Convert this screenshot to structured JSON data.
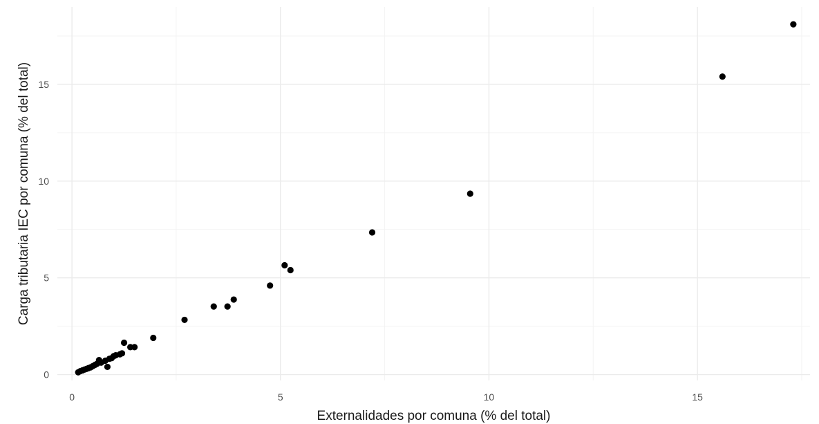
{
  "chart_data": {
    "type": "scatter",
    "title": "",
    "xlabel": "Externalidades por comuna (% del total)",
    "ylabel": "Carga tributaria IEC por comuna (% del total)",
    "xlim": [
      -0.35,
      17.7
    ],
    "ylim": [
      -0.3,
      19.0
    ],
    "xticks": [
      0,
      5,
      10,
      15
    ],
    "xtick_labels": [
      "0",
      "5",
      "10",
      "15"
    ],
    "yticks": [
      0,
      5,
      10,
      15
    ],
    "ytick_labels": [
      "0",
      "5",
      "10",
      "15"
    ],
    "grid": true,
    "point_color": "#000000",
    "points": [
      {
        "x": 0.15,
        "y": 0.12
      },
      {
        "x": 0.2,
        "y": 0.18
      },
      {
        "x": 0.25,
        "y": 0.22
      },
      {
        "x": 0.3,
        "y": 0.26
      },
      {
        "x": 0.35,
        "y": 0.3
      },
      {
        "x": 0.4,
        "y": 0.34
      },
      {
        "x": 0.45,
        "y": 0.38
      },
      {
        "x": 0.5,
        "y": 0.44
      },
      {
        "x": 0.55,
        "y": 0.5
      },
      {
        "x": 0.6,
        "y": 0.56
      },
      {
        "x": 0.65,
        "y": 0.75
      },
      {
        "x": 0.7,
        "y": 0.62
      },
      {
        "x": 0.8,
        "y": 0.72
      },
      {
        "x": 0.85,
        "y": 0.4
      },
      {
        "x": 0.9,
        "y": 0.82
      },
      {
        "x": 0.95,
        "y": 0.85
      },
      {
        "x": 1.0,
        "y": 0.95
      },
      {
        "x": 1.05,
        "y": 1.0
      },
      {
        "x": 1.15,
        "y": 1.05
      },
      {
        "x": 1.2,
        "y": 1.1
      },
      {
        "x": 1.25,
        "y": 1.65
      },
      {
        "x": 1.4,
        "y": 1.42
      },
      {
        "x": 1.5,
        "y": 1.42
      },
      {
        "x": 1.95,
        "y": 1.9
      },
      {
        "x": 2.7,
        "y": 2.83
      },
      {
        "x": 3.4,
        "y": 3.52
      },
      {
        "x": 3.73,
        "y": 3.52
      },
      {
        "x": 3.88,
        "y": 3.88
      },
      {
        "x": 4.75,
        "y": 4.6
      },
      {
        "x": 5.1,
        "y": 5.65
      },
      {
        "x": 5.24,
        "y": 5.4
      },
      {
        "x": 7.2,
        "y": 7.35
      },
      {
        "x": 9.55,
        "y": 9.35
      },
      {
        "x": 15.6,
        "y": 15.4
      },
      {
        "x": 17.3,
        "y": 18.1
      }
    ]
  }
}
